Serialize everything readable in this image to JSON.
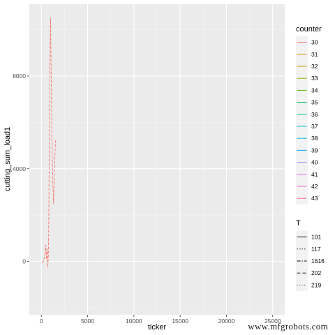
{
  "chart_data": {
    "type": "line",
    "xlabel": "ticker",
    "ylabel": "cutting_sum_load1",
    "xlim": [
      -1300,
      26300
    ],
    "ylim": [
      -2300,
      11100
    ],
    "x_ticks": [
      0,
      5000,
      10000,
      15000,
      20000,
      25000
    ],
    "x_tick_labels": [
      "0",
      "5000",
      "10000",
      "15000",
      "20000",
      "25000"
    ],
    "y_ticks": [
      0,
      4000,
      8000
    ],
    "y_tick_labels": [
      "0",
      "4000",
      "8000"
    ],
    "grid": true,
    "legend_position": "right",
    "color_legend": {
      "title": "counter",
      "entries": [
        {
          "label": "30",
          "color": "#F8766D"
        },
        {
          "label": "31",
          "color": "#E38900"
        },
        {
          "label": "32",
          "color": "#C49A00"
        },
        {
          "label": "33",
          "color": "#99A800"
        },
        {
          "label": "34",
          "color": "#53B400"
        },
        {
          "label": "35",
          "color": "#00BC56"
        },
        {
          "label": "36",
          "color": "#00C094"
        },
        {
          "label": "37",
          "color": "#00BFC4"
        },
        {
          "label": "38",
          "color": "#00B6EB"
        },
        {
          "label": "39",
          "color": "#06A4FF"
        },
        {
          "label": "40",
          "color": "#A58AFF"
        },
        {
          "label": "41",
          "color": "#DF70F8"
        },
        {
          "label": "42",
          "color": "#FB61D7"
        },
        {
          "label": "43",
          "color": "#FF66A8"
        }
      ]
    },
    "linetype_legend": {
      "title": "T",
      "entries": [
        {
          "label": "101",
          "dash": "none"
        },
        {
          "label": "117",
          "dash": "1.5,2"
        },
        {
          "label": "1616",
          "dash": "5,2,1.5,2"
        },
        {
          "label": "202",
          "dash": "5,3"
        },
        {
          "label": "219",
          "dash": "1,2.5"
        }
      ]
    },
    "series": [
      {
        "counter": "30",
        "T": "1616",
        "color": "#F8766D",
        "dash": "4,2",
        "x": [
          60,
          200,
          380,
          480,
          560,
          620,
          700,
          760,
          820,
          880,
          940,
          1000,
          1080,
          1160,
          1240,
          1320,
          1400,
          1480,
          1560
        ],
        "y": [
          0,
          -30,
          250,
          700,
          100,
          550,
          -250,
          300,
          2500,
          6200,
          8800,
          10500,
          7500,
          4800,
          3500,
          2500,
          3600,
          4800,
          5300
        ]
      }
    ]
  },
  "watermark": "www.mfgrobots.com"
}
